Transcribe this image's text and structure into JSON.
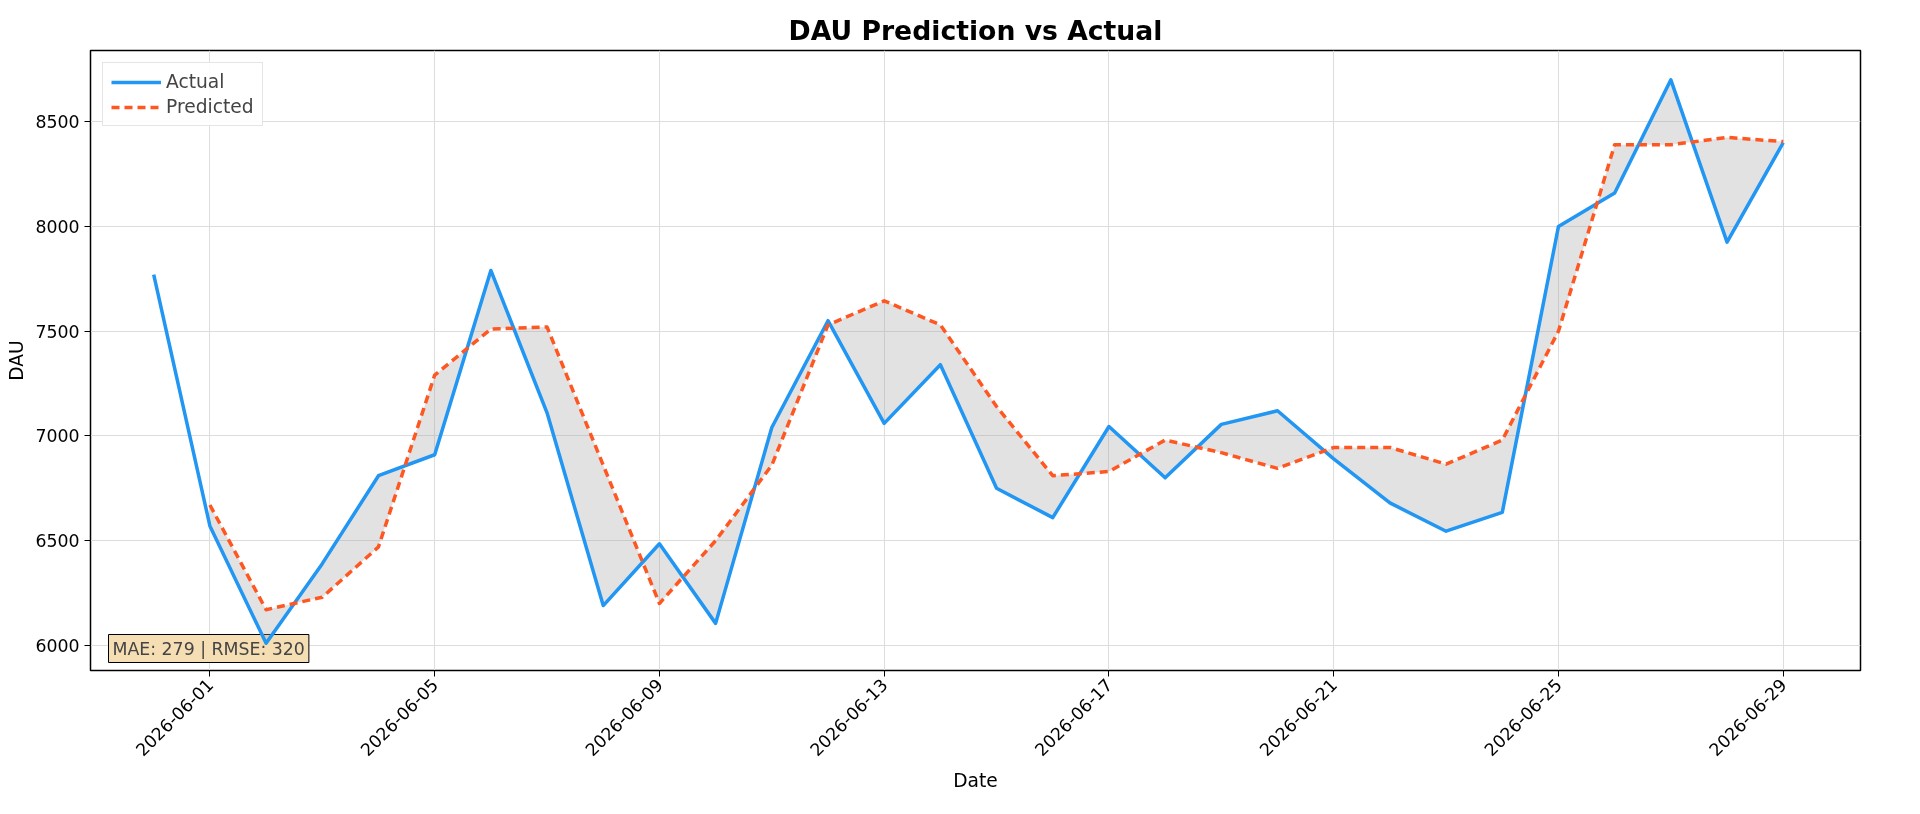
{
  "chart_data": {
    "type": "line",
    "title": "DAU Prediction vs Actual",
    "xlabel": "Date",
    "ylabel": "DAU",
    "xlim": [
      "2026-05-29T21:00",
      "2026-06-30T09:00"
    ],
    "xticks": [
      "2026-06-01",
      "2026-06-05",
      "2026-06-09",
      "2026-06-13",
      "2026-06-17",
      "2026-06-21",
      "2026-06-25",
      "2026-06-29"
    ],
    "ylim": [
      5880,
      8840
    ],
    "yticks": [
      6000,
      6500,
      7000,
      7500,
      8000,
      8500
    ],
    "grid": true,
    "legend": "top left",
    "marker": "none",
    "annotations": [
      "MAE: 279 | RMSE: 320"
    ],
    "series": [
      {
        "name": "Actual",
        "color": "#2196f3",
        "line_style": "solid",
        "x": [
          "2026-05-31",
          "2026-06-01",
          "2026-06-02",
          "2026-06-03",
          "2026-06-04",
          "2026-06-05",
          "2026-06-06",
          "2026-06-07",
          "2026-06-08",
          "2026-06-09",
          "2026-06-10",
          "2026-06-11",
          "2026-06-12",
          "2026-06-13",
          "2026-06-14",
          "2026-06-15",
          "2026-06-16",
          "2026-06-17",
          "2026-06-18",
          "2026-06-19",
          "2026-06-20",
          "2026-06-21",
          "2026-06-22",
          "2026-06-23",
          "2026-06-24",
          "2026-06-25",
          "2026-06-26",
          "2026-06-27",
          "2026-06-28",
          "2026-06-29"
        ],
        "values": [
          7770,
          6570,
          6010,
          6390,
          6810,
          6910,
          7790,
          7110,
          6190,
          6485,
          6105,
          7040,
          7550,
          7060,
          7340,
          6750,
          6610,
          7045,
          6800,
          7055,
          7120,
          6890,
          6680,
          6545,
          6635,
          8000,
          8160,
          8700,
          7925,
          8400
        ]
      },
      {
        "name": "Predicted",
        "color": "#ff5722",
        "line_style": "dashed",
        "x": [
          "2026-06-01",
          "2026-06-02",
          "2026-06-03",
          "2026-06-04",
          "2026-06-05",
          "2026-06-06",
          "2026-06-07",
          "2026-06-08",
          "2026-06-09",
          "2026-06-10",
          "2026-06-11",
          "2026-06-12",
          "2026-06-13",
          "2026-06-14",
          "2026-06-15",
          "2026-06-16",
          "2026-06-17",
          "2026-06-18",
          "2026-06-19",
          "2026-06-20",
          "2026-06-21",
          "2026-06-22",
          "2026-06-23",
          "2026-06-24",
          "2026-06-25",
          "2026-06-26",
          "2026-06-27",
          "2026-06-28",
          "2026-06-29"
        ],
        "values": [
          6670,
          6170,
          6230,
          6470,
          7290,
          7510,
          7520,
          6860,
          6200,
          6500,
          6860,
          7530,
          7645,
          7530,
          7140,
          6810,
          6830,
          6980,
          6920,
          6845,
          6945,
          6945,
          6865,
          6980,
          7500,
          8390,
          8390,
          8425,
          8405
        ],
        "lower": [
          6570,
          6010,
          6390,
          6810,
          6910,
          7790,
          7110,
          6190,
          6485,
          6105,
          7040,
          7550,
          7060,
          7340,
          6750,
          6610,
          7045,
          6800,
          7055,
          7120,
          6890,
          6680,
          6545,
          6635,
          8000,
          8160,
          8700,
          7925,
          8400
        ],
        "upper": [
          6670,
          6170,
          6230,
          6470,
          7290,
          7510,
          7520,
          6860,
          6200,
          6500,
          6860,
          7530,
          7645,
          7530,
          7140,
          6810,
          6830,
          6980,
          6920,
          6845,
          6945,
          6945,
          6865,
          6980,
          7500,
          8390,
          8390,
          8425,
          8405
        ]
      }
    ]
  }
}
